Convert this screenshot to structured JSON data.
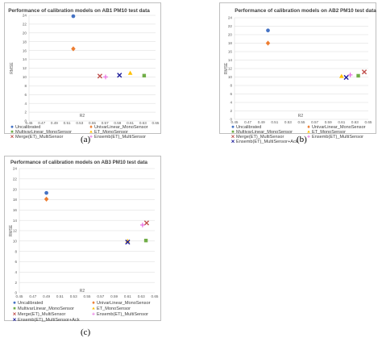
{
  "chart_data": [
    {
      "type": "scatter",
      "title": "Performance of calibration models on AB1 PM10 test data",
      "caption": "(a)",
      "xlabel": "R2",
      "ylabel": "RMSE",
      "xlim": [
        0.45,
        0.65
      ],
      "ylim": [
        0,
        24
      ],
      "xticks": [
        "0.45",
        "0.47",
        "0.49",
        "0.51",
        "0.53",
        "0.55",
        "0.57",
        "0.59",
        "0.61",
        "0.63",
        "0.65"
      ],
      "yticks": [
        "0",
        "2",
        "4",
        "6",
        "8",
        "10",
        "12",
        "14",
        "16",
        "18",
        "20",
        "22",
        "24"
      ],
      "grid": "horizontal",
      "legend": "bottom",
      "series": [
        {
          "name": "Uncalibrated",
          "x": 0.52,
          "y": 23.8
        },
        {
          "name": "UnivarLinear_MonoSensor",
          "x": 0.52,
          "y": 16.4
        },
        {
          "name": "MultivarLinear_MonoSensor",
          "x": 0.632,
          "y": 10.3
        },
        {
          "name": "ET_MonoSensor",
          "x": 0.61,
          "y": 10.9
        },
        {
          "name": "Merge(ET)_MultiSensor",
          "x": 0.562,
          "y": 10.2
        },
        {
          "name": "Ensemb(ET)_MultiSensor",
          "x": 0.571,
          "y": 10.0
        },
        {
          "name": "Ensemb(ET)_MultiSensor+Ack",
          "x": 0.593,
          "y": 10.4
        }
      ]
    },
    {
      "type": "scatter",
      "title": "Performance of calibration models on AB2 PM10 test data",
      "caption": "(b)",
      "xlabel": "R2",
      "ylabel": "RMSE",
      "xlim": [
        0.45,
        0.65
      ],
      "ylim": [
        0,
        24
      ],
      "xticks": [
        "0.45",
        "0.47",
        "0.49",
        "0.51",
        "0.53",
        "0.55",
        "0.57",
        "0.59",
        "0.61",
        "0.63",
        "0.65"
      ],
      "yticks": [
        "0",
        "2",
        "4",
        "6",
        "8",
        "10",
        "12",
        "14",
        "16",
        "18",
        "20",
        "22",
        "24"
      ],
      "grid": "horizontal",
      "legend": "bottom",
      "series": [
        {
          "name": "Uncalibrated",
          "x": 0.5,
          "y": 21.0
        },
        {
          "name": "UnivarLinear_MonoSensor",
          "x": 0.5,
          "y": 18.0
        },
        {
          "name": "MultivarLinear_MonoSensor",
          "x": 0.635,
          "y": 10.3
        },
        {
          "name": "ET_MonoSensor",
          "x": 0.61,
          "y": 10.2
        },
        {
          "name": "Merge(ET)_MultiSensor",
          "x": 0.644,
          "y": 11.2
        },
        {
          "name": "Ensemb(ET)_MultiSensor",
          "x": 0.623,
          "y": 10.5
        },
        {
          "name": "Ensemb(ET)_MultiSensor+Ack",
          "x": 0.617,
          "y": 9.9
        }
      ]
    },
    {
      "type": "scatter",
      "title": "Performance of calibration models on AB3 PM10 test data",
      "caption": "(c)",
      "xlabel": "R2",
      "ylabel": "RMSE",
      "xlim": [
        0.45,
        0.65
      ],
      "ylim": [
        0,
        24
      ],
      "xticks": [
        "0.45",
        "0.47",
        "0.49",
        "0.51",
        "0.53",
        "0.55",
        "0.57",
        "0.59",
        "0.61",
        "0.63",
        "0.65"
      ],
      "yticks": [
        "0",
        "2",
        "4",
        "6",
        "8",
        "10",
        "12",
        "14",
        "16",
        "18",
        "20",
        "22",
        "24"
      ],
      "grid": "horizontal",
      "legend": "bottom",
      "series": [
        {
          "name": "Uncalibrated",
          "x": 0.49,
          "y": 19.3
        },
        {
          "name": "UnivarLinear_MonoSensor",
          "x": 0.49,
          "y": 18.1
        },
        {
          "name": "MultivarLinear_MonoSensor",
          "x": 0.637,
          "y": 10.1
        },
        {
          "name": "ET_MonoSensor",
          "x": 0.61,
          "y": 10.0
        },
        {
          "name": "Merge(ET)_MultiSensor",
          "x": 0.638,
          "y": 13.5
        },
        {
          "name": "Ensemb(ET)_MultiSensor",
          "x": 0.632,
          "y": 13.1
        },
        {
          "name": "Ensemb(ET)_MultiSensor+Ack",
          "x": 0.61,
          "y": 9.8
        }
      ]
    }
  ],
  "legend_style": {
    "Uncalibrated": {
      "marker": "circle",
      "color": "#4472c4"
    },
    "UnivarLinear_MonoSensor": {
      "marker": "diamond",
      "color": "#ed7d31"
    },
    "MultivarLinear_MonoSensor": {
      "marker": "square",
      "color": "#70ad47"
    },
    "ET_MonoSensor": {
      "marker": "triangle",
      "color": "#ffc000"
    },
    "Merge(ET)_MultiSensor": {
      "marker": "x",
      "color": "#c0504d"
    },
    "Ensemb(ET)_MultiSensor": {
      "marker": "plus",
      "color": "#e76ae0"
    },
    "Ensemb(ET)_MultiSensor+Ack": {
      "marker": "x",
      "color": "#1f1f9c"
    }
  },
  "colors": {
    "grid": "#d9d9d9",
    "border": "#bfbfbf",
    "text": "#595959"
  }
}
